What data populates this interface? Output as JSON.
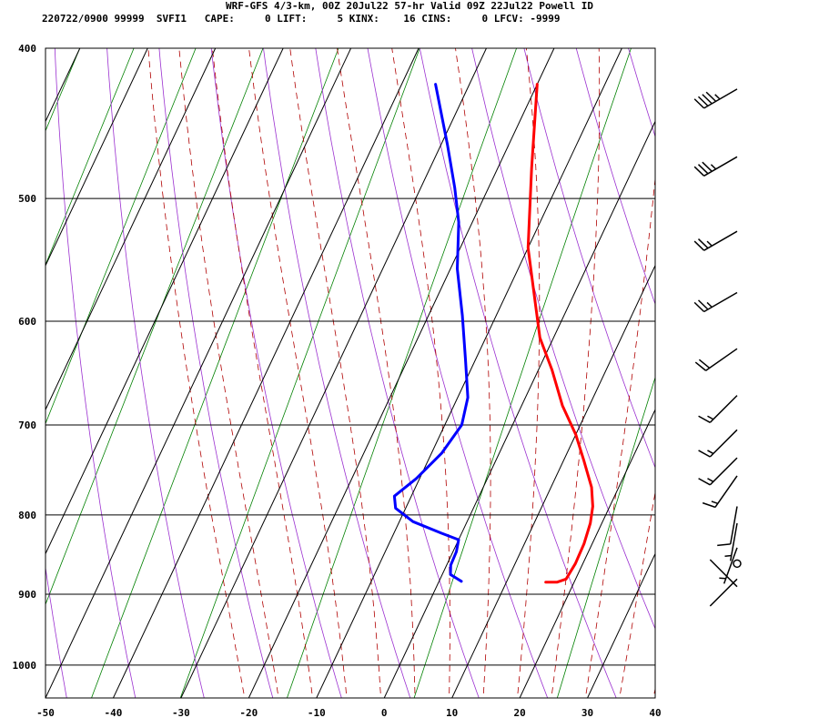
{
  "header": {
    "title": "WRF-GFS 4/3-km, 00Z 20Jul22 57-hr Valid 09Z 22Jul22 Powell ID",
    "info": "220722/0900 99999  SVFI1   CAPE:     0 LIFT:     5 KINX:    16 CINS:     0 LFCV: -9999"
  },
  "chart_data": {
    "type": "line",
    "subtype": "skew-T log-p sounding",
    "x_ticks": [
      -50,
      -40,
      -30,
      -20,
      -10,
      0,
      10,
      20,
      30,
      40
    ],
    "p_ticks": [
      400,
      500,
      600,
      700,
      800,
      900,
      1000
    ],
    "xlim": [
      -50,
      40
    ],
    "plim": [
      400,
      1050
    ],
    "y_scale": "log",
    "grid": true,
    "colors": {
      "temperature": "#ff0000",
      "dewpoint": "#0000ff",
      "isotherm": "#000000",
      "dry_adiabat": "#9b30d0",
      "moist_adiabat": "#b00000",
      "mixing_ratio": "#008000"
    },
    "series": [
      {
        "role": "temperature",
        "points": [
          [
            -20,
            422
          ],
          [
            -15,
            478
          ],
          [
            -10,
            538
          ],
          [
            -5,
            585
          ],
          [
            -2,
            615
          ],
          [
            2,
            645
          ],
          [
            6,
            680
          ],
          [
            10,
            710
          ],
          [
            13,
            738
          ],
          [
            16,
            768
          ],
          [
            17.5,
            790
          ],
          [
            18.3,
            810
          ],
          [
            18.8,
            835
          ],
          [
            18.9,
            860
          ],
          [
            18.6,
            880
          ],
          [
            17.5,
            884
          ],
          [
            15.8,
            884
          ]
        ]
      },
      {
        "role": "dewpoint",
        "points": [
          [
            -35,
            422
          ],
          [
            -29,
            462
          ],
          [
            -25,
            492
          ],
          [
            -22,
            518
          ],
          [
            -19,
            555
          ],
          [
            -15,
            595
          ],
          [
            -11.5,
            635
          ],
          [
            -8.5,
            672
          ],
          [
            -7.5,
            700
          ],
          [
            -8.5,
            730
          ],
          [
            -10.5,
            758
          ],
          [
            -12.5,
            778
          ],
          [
            -11.5,
            792
          ],
          [
            -8,
            808
          ],
          [
            -3,
            822
          ],
          [
            0,
            830
          ],
          [
            0.5,
            845
          ],
          [
            0.6,
            862
          ],
          [
            1.2,
            874
          ],
          [
            3.3,
            883
          ]
        ]
      }
    ],
    "wind_barbs": [
      {
        "p": 425,
        "dir": 240,
        "speed": 45
      },
      {
        "p": 470,
        "dir": 240,
        "speed": 35
      },
      {
        "p": 525,
        "dir": 240,
        "speed": 25
      },
      {
        "p": 575,
        "dir": 240,
        "speed": 25
      },
      {
        "p": 625,
        "dir": 235,
        "speed": 20
      },
      {
        "p": 670,
        "dir": 225,
        "speed": 15
      },
      {
        "p": 705,
        "dir": 225,
        "speed": 15
      },
      {
        "p": 735,
        "dir": 225,
        "speed": 15
      },
      {
        "p": 755,
        "dir": 215,
        "speed": 15
      },
      {
        "p": 790,
        "dir": 190,
        "speed": 10
      },
      {
        "p": 810,
        "dir": 190,
        "speed": 5
      },
      {
        "p": 840,
        "dir": 200,
        "speed": 5
      },
      {
        "p": 860,
        "dir": 0,
        "speed": 0
      },
      {
        "p": 880,
        "dir": 225,
        "speed": 0
      },
      {
        "p": 890,
        "dir": 315,
        "speed": 0
      }
    ]
  }
}
